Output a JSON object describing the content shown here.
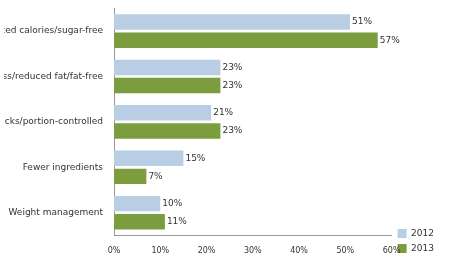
{
  "chart_data": {
    "type": "bar",
    "orientation": "horizontal",
    "categories": [
      "Less/reduced calories/sugar-free",
      "Less/reduced fat/fat-free",
      "Smart snacks/portion-controlled",
      "Fewer ingredients",
      "Weight management"
    ],
    "series": [
      {
        "name": "2012",
        "color": "#b9cee4",
        "values": [
          51,
          23,
          21,
          15,
          10
        ],
        "value_labels": [
          "51%",
          "23%",
          "21%",
          "15%",
          "10%"
        ]
      },
      {
        "name": "2013",
        "color": "#7c9d3e",
        "values": [
          57,
          23,
          23,
          7,
          11
        ],
        "value_labels": [
          "57%",
          "23%",
          "23%",
          "7%",
          "11%"
        ]
      }
    ],
    "xlim": [
      0,
      60
    ],
    "xticks": [
      {
        "value": 0,
        "label": "0%"
      },
      {
        "value": 10,
        "label": "10%"
      },
      {
        "value": 20,
        "label": "20%"
      },
      {
        "value": 30,
        "label": "30%"
      },
      {
        "value": 40,
        "label": "40%"
      },
      {
        "value": 50,
        "label": "50%"
      },
      {
        "value": 60,
        "label": "60%"
      }
    ],
    "grid": false,
    "legend": "right",
    "data_labels": true
  }
}
